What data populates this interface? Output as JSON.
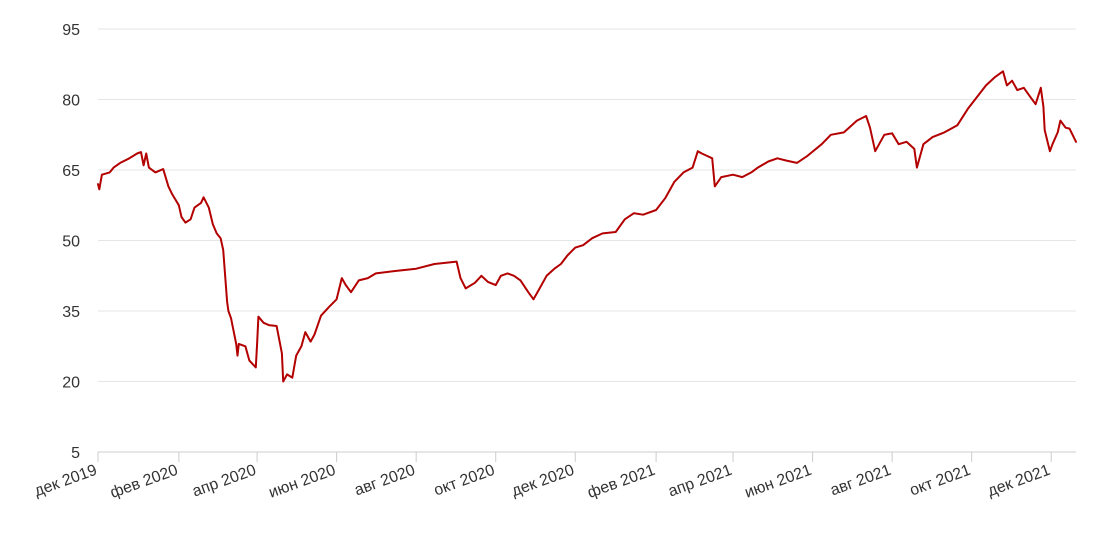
{
  "chart_data": {
    "type": "line",
    "title": "",
    "xlabel": "",
    "ylabel": "",
    "ylim": [
      5,
      95
    ],
    "y_ticks": [
      5,
      20,
      35,
      50,
      65,
      80,
      95
    ],
    "grid": "horizontal",
    "legend": "none",
    "line_color": "#b30000",
    "x_ticks": [
      {
        "date": "2019-12-01",
        "label": "дек 2019"
      },
      {
        "date": "2020-02-01",
        "label": "фев 2020"
      },
      {
        "date": "2020-04-01",
        "label": "апр 2020"
      },
      {
        "date": "2020-06-01",
        "label": "июн 2020"
      },
      {
        "date": "2020-08-01",
        "label": "авг 2020"
      },
      {
        "date": "2020-10-01",
        "label": "окт 2020"
      },
      {
        "date": "2020-12-01",
        "label": "дек 2020"
      },
      {
        "date": "2021-02-01",
        "label": "фев 2021"
      },
      {
        "date": "2021-04-01",
        "label": "апр 2021"
      },
      {
        "date": "2021-06-01",
        "label": "июн 2021"
      },
      {
        "date": "2021-08-01",
        "label": "авг 2021"
      },
      {
        "date": "2021-10-01",
        "label": "окт 2021"
      },
      {
        "date": "2021-12-01",
        "label": "дек 2021"
      }
    ],
    "x_range": [
      "2019-12-01",
      "2021-12-20"
    ],
    "series": [
      {
        "points": [
          [
            "2019-12-01",
            62
          ],
          [
            "2019-12-02",
            60.9
          ],
          [
            "2019-12-04",
            64
          ],
          [
            "2019-12-10",
            64.5
          ],
          [
            "2019-12-13",
            65.5
          ],
          [
            "2019-12-18",
            66.5
          ],
          [
            "2019-12-25",
            67.5
          ],
          [
            "2019-12-31",
            68.5
          ],
          [
            "2020-01-03",
            68.8
          ],
          [
            "2020-01-05",
            66
          ],
          [
            "2020-01-07",
            68.5
          ],
          [
            "2020-01-09",
            65.5
          ],
          [
            "2020-01-14",
            64.5
          ],
          [
            "2020-01-20",
            65.2
          ],
          [
            "2020-01-24",
            61.5
          ],
          [
            "2020-01-27",
            59.8
          ],
          [
            "2020-02-01",
            57.5
          ],
          [
            "2020-02-03",
            55
          ],
          [
            "2020-02-06",
            53.8
          ],
          [
            "2020-02-10",
            54.5
          ],
          [
            "2020-02-13",
            57
          ],
          [
            "2020-02-18",
            58
          ],
          [
            "2020-02-20",
            59.2
          ],
          [
            "2020-02-24",
            57
          ],
          [
            "2020-02-27",
            53.5
          ],
          [
            "2020-03-01",
            51.5
          ],
          [
            "2020-03-04",
            50.5
          ],
          [
            "2020-03-06",
            48
          ],
          [
            "2020-03-09",
            37
          ],
          [
            "2020-03-10",
            35
          ],
          [
            "2020-03-12",
            33.5
          ],
          [
            "2020-03-16",
            28
          ],
          [
            "2020-03-17",
            25.5
          ],
          [
            "2020-03-18",
            28
          ],
          [
            "2020-03-23",
            27.5
          ],
          [
            "2020-03-26",
            24.5
          ],
          [
            "2020-03-31",
            23
          ],
          [
            "2020-04-01",
            28
          ],
          [
            "2020-04-02",
            33.8
          ],
          [
            "2020-04-06",
            32.5
          ],
          [
            "2020-04-10",
            32
          ],
          [
            "2020-04-16",
            31.8
          ],
          [
            "2020-04-20",
            26
          ],
          [
            "2020-04-21",
            20
          ],
          [
            "2020-04-24",
            21.5
          ],
          [
            "2020-04-28",
            20.8
          ],
          [
            "2020-05-01",
            25.5
          ],
          [
            "2020-05-05",
            27.5
          ],
          [
            "2020-05-08",
            30.5
          ],
          [
            "2020-05-12",
            28.5
          ],
          [
            "2020-05-15",
            30
          ],
          [
            "2020-05-20",
            34
          ],
          [
            "2020-05-26",
            35.8
          ],
          [
            "2020-06-01",
            37.5
          ],
          [
            "2020-06-05",
            42
          ],
          [
            "2020-06-08",
            40.5
          ],
          [
            "2020-06-12",
            39
          ],
          [
            "2020-06-18",
            41.5
          ],
          [
            "2020-06-25",
            42
          ],
          [
            "2020-07-01",
            43
          ],
          [
            "2020-07-15",
            43.5
          ],
          [
            "2020-08-01",
            44
          ],
          [
            "2020-08-15",
            45
          ],
          [
            "2020-09-01",
            45.5
          ],
          [
            "2020-09-04",
            42
          ],
          [
            "2020-09-08",
            39.8
          ],
          [
            "2020-09-15",
            41
          ],
          [
            "2020-09-20",
            42.5
          ],
          [
            "2020-09-25",
            41.2
          ],
          [
            "2020-10-01",
            40.5
          ],
          [
            "2020-10-05",
            42.5
          ],
          [
            "2020-10-10",
            43
          ],
          [
            "2020-10-15",
            42.5
          ],
          [
            "2020-10-20",
            41.5
          ],
          [
            "2020-10-26",
            39
          ],
          [
            "2020-10-30",
            37.5
          ],
          [
            "2020-11-03",
            39.5
          ],
          [
            "2020-11-09",
            42.5
          ],
          [
            "2020-11-15",
            44
          ],
          [
            "2020-11-20",
            45
          ],
          [
            "2020-11-25",
            46.8
          ],
          [
            "2020-12-01",
            48.5
          ],
          [
            "2020-12-07",
            49
          ],
          [
            "2020-12-14",
            50.5
          ],
          [
            "2020-12-22",
            51.5
          ],
          [
            "2021-01-01",
            51.8
          ],
          [
            "2021-01-08",
            54.5
          ],
          [
            "2021-01-15",
            55.8
          ],
          [
            "2021-01-22",
            55.5
          ],
          [
            "2021-02-01",
            56.5
          ],
          [
            "2021-02-08",
            59
          ],
          [
            "2021-02-15",
            62.5
          ],
          [
            "2021-02-22",
            64.5
          ],
          [
            "2021-03-01",
            65.5
          ],
          [
            "2021-03-05",
            69
          ],
          [
            "2021-03-08",
            68.5
          ],
          [
            "2021-03-12",
            68
          ],
          [
            "2021-03-16",
            67.5
          ],
          [
            "2021-03-18",
            61.5
          ],
          [
            "2021-03-23",
            63.5
          ],
          [
            "2021-04-01",
            64
          ],
          [
            "2021-04-08",
            63.5
          ],
          [
            "2021-04-15",
            64.5
          ],
          [
            "2021-04-20",
            65.5
          ],
          [
            "2021-04-28",
            66.8
          ],
          [
            "2021-05-05",
            67.5
          ],
          [
            "2021-05-12",
            67
          ],
          [
            "2021-05-20",
            66.5
          ],
          [
            "2021-05-28",
            68
          ],
          [
            "2021-06-08",
            70.5
          ],
          [
            "2021-06-15",
            72.5
          ],
          [
            "2021-06-25",
            73
          ],
          [
            "2021-07-05",
            75.5
          ],
          [
            "2021-07-12",
            76.5
          ],
          [
            "2021-07-15",
            74
          ],
          [
            "2021-07-19",
            69
          ],
          [
            "2021-07-26",
            72.5
          ],
          [
            "2021-08-01",
            72.8
          ],
          [
            "2021-08-06",
            70.5
          ],
          [
            "2021-08-12",
            71
          ],
          [
            "2021-08-18",
            69.5
          ],
          [
            "2021-08-20",
            65.5
          ],
          [
            "2021-08-25",
            70.5
          ],
          [
            "2021-09-01",
            72
          ],
          [
            "2021-09-10",
            73
          ],
          [
            "2021-09-20",
            74.5
          ],
          [
            "2021-09-28",
            78
          ],
          [
            "2021-10-05",
            80.5
          ],
          [
            "2021-10-12",
            83
          ],
          [
            "2021-10-19",
            84.8
          ],
          [
            "2021-10-25",
            86
          ],
          [
            "2021-10-28",
            83
          ],
          [
            "2021-11-01",
            84
          ],
          [
            "2021-11-05",
            82
          ],
          [
            "2021-11-10",
            82.5
          ],
          [
            "2021-11-15",
            80.5
          ],
          [
            "2021-11-19",
            79
          ],
          [
            "2021-11-23",
            82.5
          ],
          [
            "2021-11-25",
            78.5
          ],
          [
            "2021-11-26",
            73.5
          ],
          [
            "2021-11-30",
            69
          ],
          [
            "2021-12-02",
            70.5
          ],
          [
            "2021-12-06",
            73
          ],
          [
            "2021-12-08",
            75.5
          ],
          [
            "2021-12-12",
            74
          ],
          [
            "2021-12-15",
            73.8
          ],
          [
            "2021-12-20",
            71
          ]
        ]
      }
    ]
  }
}
